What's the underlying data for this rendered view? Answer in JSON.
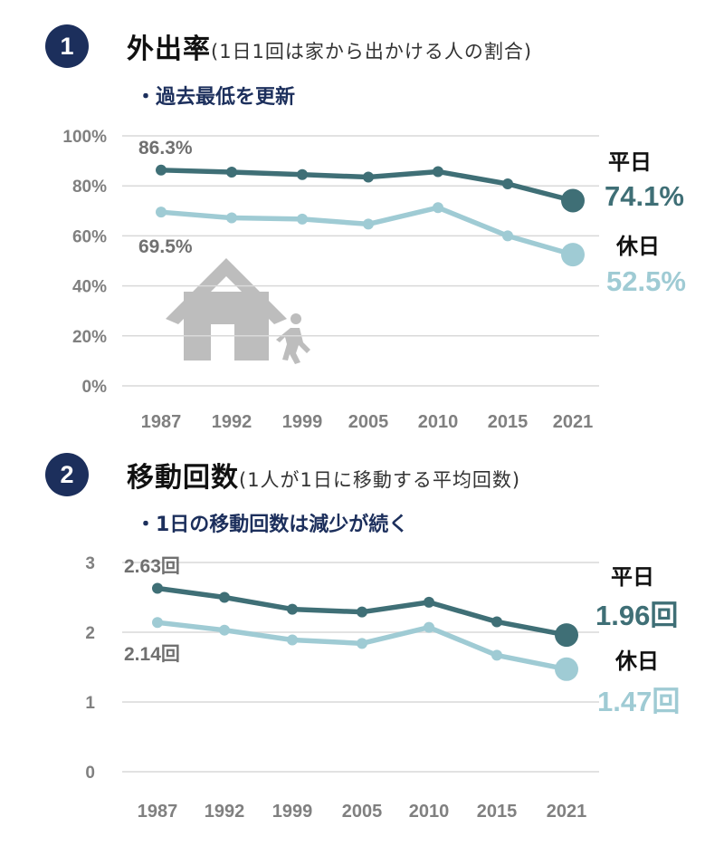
{
  "colors": {
    "weekday": "#3f6f76",
    "holiday": "#9fcbd4",
    "badge": "#1c2f5c",
    "grid": "#d9d9d9",
    "house": "#bdbdbd"
  },
  "chart_data": [
    {
      "type": "line",
      "number": "1",
      "title": "外出率",
      "subtitle": "(1日1回は家から出かける人の割合)",
      "note": "・過去最低を更新",
      "categories": [
        "1987",
        "1992",
        "1999",
        "2005",
        "2010",
        "2015",
        "2021"
      ],
      "y_ticks": [
        "100%",
        "80%",
        "60%",
        "40%",
        "20%",
        "0%"
      ],
      "ylim": [
        0,
        100
      ],
      "series": [
        {
          "name": "平日",
          "values": [
            86.3,
            85.5,
            84.5,
            83.5,
            85.7,
            80.8,
            74.1
          ]
        },
        {
          "name": "休日",
          "values": [
            69.5,
            67.2,
            66.7,
            64.7,
            71.3,
            60.0,
            52.5
          ]
        }
      ],
      "start_labels": [
        "86.3%",
        "69.5%"
      ],
      "end_labels": [
        "74.1%",
        "52.5%"
      ],
      "icon": "house-person-icon"
    },
    {
      "type": "line",
      "number": "2",
      "title": "移動回数",
      "subtitle": "(1人が1日に移動する平均回数)",
      "note": "・1日の移動回数は減少が続く",
      "categories": [
        "1987",
        "1992",
        "1999",
        "2005",
        "2010",
        "2015",
        "2021"
      ],
      "y_ticks": [
        "3",
        "2",
        "1",
        "0"
      ],
      "ylim": [
        0,
        3
      ],
      "series": [
        {
          "name": "平日",
          "values": [
            2.63,
            2.5,
            2.33,
            2.29,
            2.43,
            2.15,
            1.96
          ]
        },
        {
          "name": "休日",
          "values": [
            2.14,
            2.03,
            1.89,
            1.84,
            2.07,
            1.67,
            1.47
          ]
        }
      ],
      "start_labels": [
        "2.63回",
        "2.14回"
      ],
      "end_labels": [
        "1.96回",
        "1.47回"
      ]
    }
  ]
}
